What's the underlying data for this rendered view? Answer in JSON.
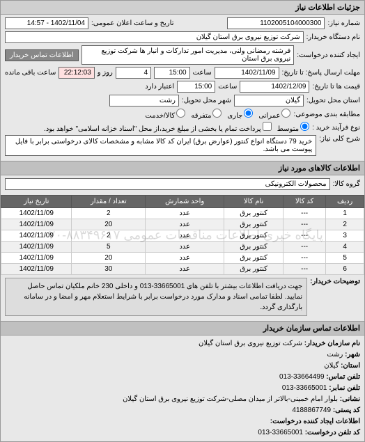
{
  "panel_title": "جزئیات اطلاعات نیاز",
  "request_no_label": "شماره نیاز:",
  "request_no": "1102005104000300",
  "announce_label": "تاریخ و ساعت اعلان عمومی:",
  "announce_value": "1402/11/04 - 14:57",
  "buyer_org_label": "نام دستگاه خریدار:",
  "buyer_org": "شرکت توزیع نیروی برق استان گیلان",
  "requester_label": "ایجاد کننده درخواست:",
  "requester": "فرشته رمضانی ولنی، مدیریت امور تدارکات و انبار ها شرکت توزیع نیروی برق استان",
  "contact_btn": "اطلاعات تماس خریدار",
  "deadline_send_label": "مهلت ارسال پاسخ: تا تاریخ:",
  "deadline_send_date": "1402/11/09",
  "time_label": "ساعت",
  "deadline_send_time": "15:00",
  "days_label": "روز و",
  "days_value": "4",
  "remain_label": "ساعت باقی مانده",
  "remain_value": "22:12:03",
  "price_valid_label": "قیمت ها تا تاریخ:",
  "price_valid_date": "1402/12/09",
  "price_valid_time": "15:00",
  "valid_label": "اعتبار دارد",
  "delivery_province_label": "استان محل تحویل:",
  "delivery_province": "گیلان",
  "delivery_city_label": "شهر محل تحویل:",
  "delivery_city": "رشت",
  "budget_label": "مطابقه بندی موضوعی:",
  "budget_options": {
    "opt1": "عمرانی",
    "opt2": "جاری",
    "opt3": "متفرقه",
    "opt4": "کالا/خدمت"
  },
  "process_label": "نوع فرآیند خرید :",
  "process_options": {
    "opt1": "متوسط",
    "opt2": "پرداخت تمام یا بخشی از مبلغ خرید،از محل \"اسناد خزانه اسلامی\" خواهد بود."
  },
  "desc_label": "شرح کلی نیاز:",
  "desc_text": "خرید 79 دستگاه انواع کنتور (عوارض برق) ایران کد کالا مشابه و مشخصات کالای درخواستی برابر با فایل پیوست می باشد.",
  "goods_section": "اطلاعات کالاهای مورد نیاز",
  "goods_group_label": "گروه کالا:",
  "goods_group": "محصولات الکترونیکی",
  "table": {
    "headers": [
      "ردیف",
      "کد کالا",
      "نام کالا",
      "واحد شمارش",
      "تعداد / مقدار",
      "تاریخ نیاز"
    ],
    "rows": [
      [
        "1",
        "---",
        "کنتور برق",
        "عدد",
        "2",
        "1402/11/09"
      ],
      [
        "2",
        "---",
        "کنتور برق",
        "عدد",
        "20",
        "1402/11/09"
      ],
      [
        "3",
        "---",
        "کنتور برق",
        "عدد",
        "2",
        "1402/11/09"
      ],
      [
        "4",
        "---",
        "کنتور برق",
        "عدد",
        "5",
        "1402/11/09"
      ],
      [
        "5",
        "---",
        "کنتور برق",
        "عدد",
        "20",
        "1402/11/09"
      ],
      [
        "6",
        "---",
        "کنتور برق",
        "عدد",
        "30",
        "1402/11/09"
      ]
    ]
  },
  "watermark": "پایگاه خبری اطلاعات مناقصات عمومی ۸۸۳۴۹۶۱۷-۰۲۰",
  "buyer_note_label": "توضیحات خریدار:",
  "buyer_note": "جهت دریافت اطلاعات بیشتر با تلفن های 33665001-013 و داخلی 230 خانم ملکیان تماس حاصل نمایید. لطفا تمامی اسناد و مدارک مورد درخواست برابر با شرایط استعلام مهر و امضا و در سامانه بارگذاری گردد.",
  "contact_section": "اطلاعات تماس سازمان خریدار",
  "contact": {
    "org_label": "نام سازمان خریدار:",
    "org": "شرکت توزیع نیروی برق استان گیلان",
    "city_label": "شهر:",
    "city": "رشت",
    "province_label": "استان:",
    "province": "گیلان",
    "phone_label": "تلفن تماس:",
    "phone": "33664499-013",
    "fax_label": "تلفن نمابر:",
    "fax": "33665001-013",
    "postal_label": "نشانی:",
    "postal": "بلوار امام خمینی-بالاتر از میدان مصلی-شرکت توزیع نیروی برق استان گیلان",
    "zip_label": "کد پستی:",
    "zip": "4188867749",
    "creator_label": "اطلاعات ایجاد کننده درخواست:",
    "creator_phone_label": "کد تلفن درخواست:",
    "creator_phone": "33665001-013"
  }
}
